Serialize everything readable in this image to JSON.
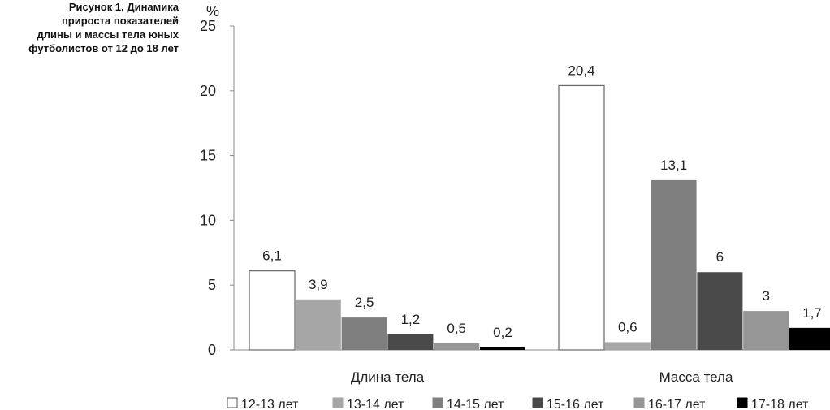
{
  "caption": {
    "lines": [
      "Рисунок 1. Динамика",
      "прироста показателей",
      "длины и массы тела юных",
      "футболистов от 12 до 18 лет"
    ]
  },
  "chart_data": {
    "type": "bar",
    "y_unit": "%",
    "ylim": [
      0,
      25
    ],
    "yticks": [
      0,
      5,
      10,
      15,
      20,
      25
    ],
    "grid": false,
    "legend_position": "bottom",
    "categories": [
      "Длина тела",
      "Масса тела"
    ],
    "series": [
      {
        "name": "12-13 лет",
        "values": [
          6.1,
          20.4
        ],
        "labels": [
          "6,1",
          "20,4"
        ],
        "color": "#ffffff"
      },
      {
        "name": "13-14 лет",
        "values": [
          3.9,
          0.6
        ],
        "labels": [
          "3,9",
          "0,6"
        ],
        "color": "#a6a6a6"
      },
      {
        "name": "14-15 лет",
        "values": [
          2.5,
          13.1
        ],
        "labels": [
          "2,5",
          "13,1"
        ],
        "color": "#7f7f7f"
      },
      {
        "name": "15-16 лет",
        "values": [
          1.2,
          6
        ],
        "labels": [
          "1,2",
          "6"
        ],
        "color": "#4a4a4a"
      },
      {
        "name": "16-17 лет",
        "values": [
          0.5,
          3
        ],
        "labels": [
          "0,5",
          "3"
        ],
        "color": "#969696"
      },
      {
        "name": "17-18 лет",
        "values": [
          0.2,
          1.7
        ],
        "labels": [
          "0,2",
          "1,7"
        ],
        "color": "#000000"
      }
    ]
  }
}
